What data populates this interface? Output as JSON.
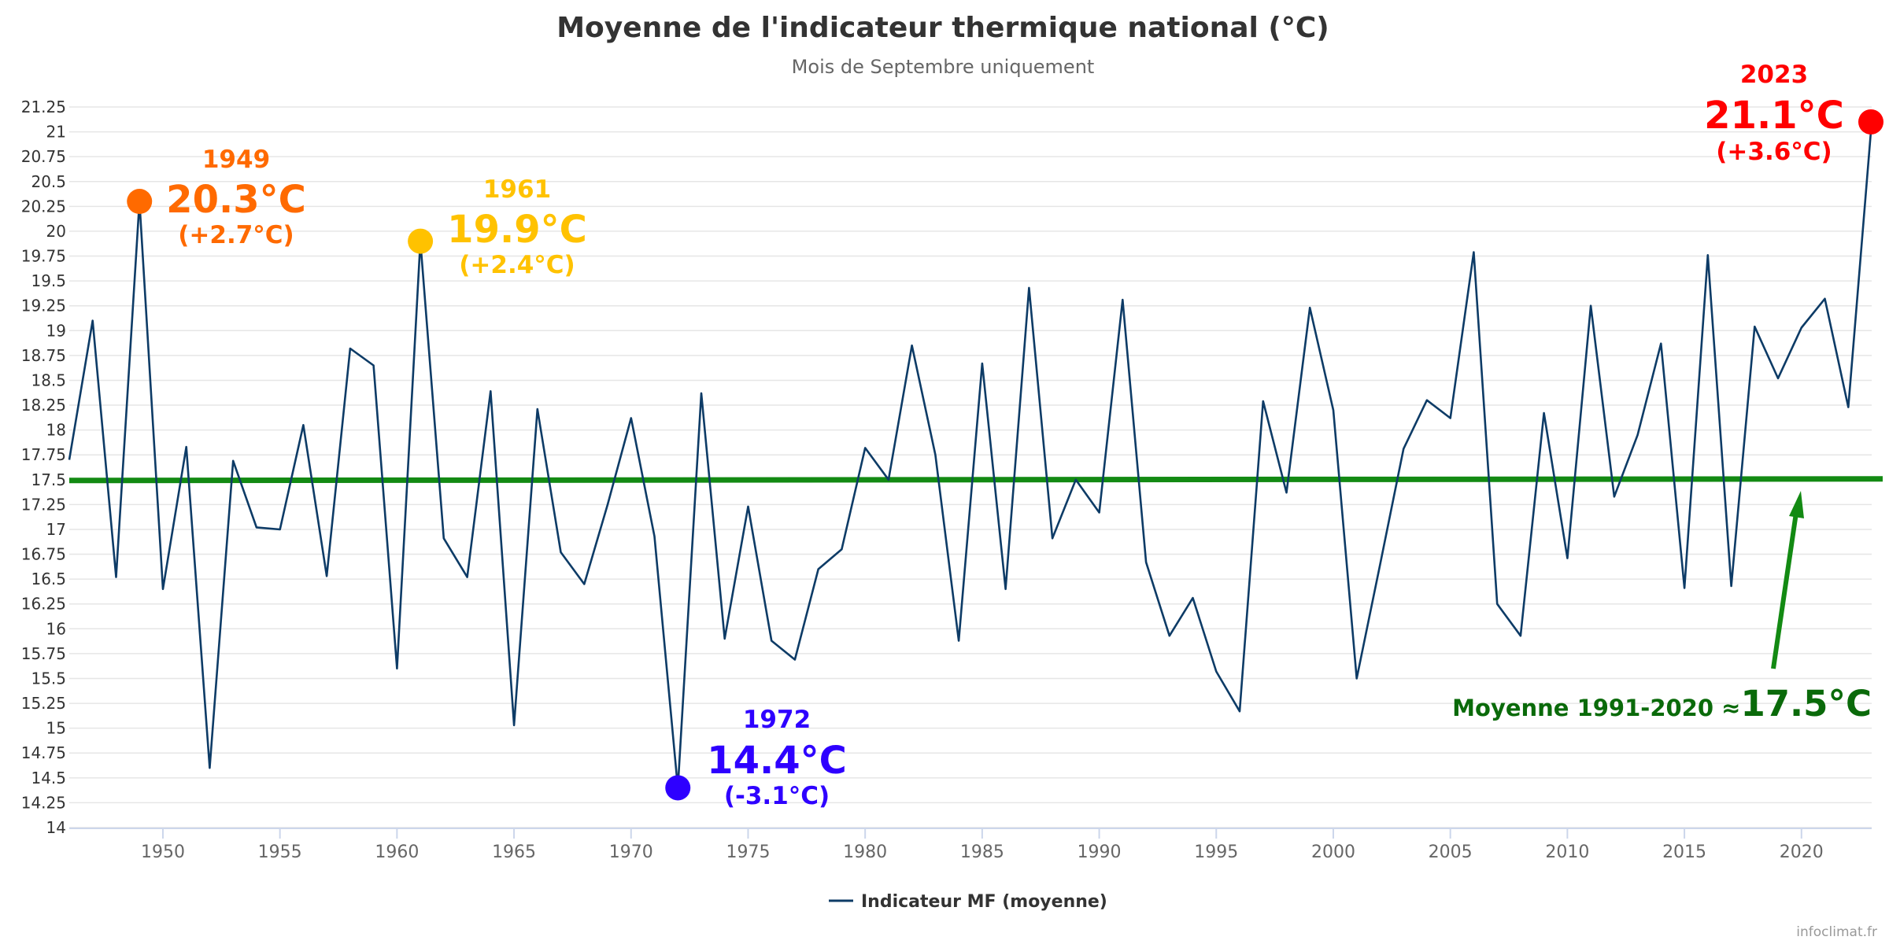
{
  "chart_data": {
    "type": "line",
    "title": "Moyenne de l'indicateur thermique national (°C)",
    "subtitle": "Mois de Septembre uniquement",
    "x_start": 1946,
    "x": [
      1946,
      1947,
      1948,
      1949,
      1950,
      1951,
      1952,
      1953,
      1954,
      1955,
      1956,
      1957,
      1958,
      1959,
      1960,
      1961,
      1962,
      1963,
      1964,
      1965,
      1966,
      1967,
      1968,
      1969,
      1970,
      1971,
      1972,
      1973,
      1974,
      1975,
      1976,
      1977,
      1978,
      1979,
      1980,
      1981,
      1982,
      1983,
      1984,
      1985,
      1986,
      1987,
      1988,
      1989,
      1990,
      1991,
      1992,
      1993,
      1994,
      1995,
      1996,
      1997,
      1998,
      1999,
      2000,
      2001,
      2002,
      2003,
      2004,
      2005,
      2006,
      2007,
      2008,
      2009,
      2010,
      2011,
      2012,
      2013,
      2014,
      2015,
      2016,
      2017,
      2018,
      2019,
      2020,
      2021,
      2022,
      2023
    ],
    "series": [
      {
        "name": "Indicateur MF (moyenne)",
        "color": "#0d3b66",
        "values": [
          17.7,
          19.1,
          16.52,
          20.3,
          16.4,
          17.83,
          14.6,
          17.69,
          17.02,
          17.0,
          18.05,
          16.53,
          18.82,
          18.65,
          15.6,
          19.9,
          16.91,
          16.52,
          18.39,
          15.03,
          18.21,
          16.77,
          16.45,
          17.25,
          18.12,
          16.93,
          14.4,
          18.37,
          15.9,
          17.23,
          15.88,
          15.69,
          16.6,
          16.8,
          17.82,
          17.5,
          18.85,
          17.75,
          15.88,
          18.67,
          16.4,
          19.43,
          16.91,
          17.5,
          17.17,
          19.31,
          16.67,
          15.93,
          16.31,
          15.57,
          15.17,
          18.29,
          17.37,
          19.23,
          18.2,
          15.5,
          16.65,
          17.81,
          18.3,
          18.12,
          19.79,
          16.25,
          15.93,
          18.17,
          16.71,
          19.25,
          17.33,
          17.95,
          18.87,
          16.41,
          19.76,
          16.43,
          19.04,
          18.52,
          19.03,
          19.32,
          18.23,
          21.1
        ]
      }
    ],
    "reference_line": {
      "value": 17.5,
      "color": "#138a13",
      "label_text": "Moyenne 1991-2020 ≈",
      "label_value": "17.5°C"
    },
    "ylim": [
      14,
      21.25
    ],
    "y_ticks": [
      14,
      14.25,
      14.5,
      14.75,
      15,
      15.25,
      15.5,
      15.75,
      16,
      16.25,
      16.5,
      16.75,
      17,
      17.25,
      17.5,
      17.75,
      18,
      18.25,
      18.5,
      18.75,
      19,
      19.25,
      19.5,
      19.75,
      20,
      20.25,
      20.5,
      20.75,
      21,
      21.25
    ],
    "x_ticks": [
      1950,
      1955,
      1960,
      1965,
      1970,
      1975,
      1980,
      1985,
      1990,
      1995,
      2000,
      2005,
      2010,
      2015,
      2020
    ],
    "xlabel": "",
    "ylabel": "",
    "grid": true,
    "legend_position": "bottom-center",
    "highlights": [
      {
        "year": 1949,
        "value": 20.3,
        "year_label": "1949",
        "value_label": "20.3°C",
        "anomaly_label": "(+2.7°C)",
        "color": "#ff6a00"
      },
      {
        "year": 1961,
        "value": 19.9,
        "year_label": "1961",
        "value_label": "19.9°C",
        "anomaly_label": "(+2.4°C)",
        "color": "#ffc200"
      },
      {
        "year": 1972,
        "value": 14.4,
        "year_label": "1972",
        "value_label": "14.4°C",
        "anomaly_label": "(-3.1°C)",
        "color": "#2e00ff"
      },
      {
        "year": 2023,
        "value": 21.1,
        "year_label": "2023",
        "value_label": "21.1°C",
        "anomaly_label": "(+3.6°C)",
        "color": "#ff0000"
      }
    ],
    "credit": "infoclimat.fr"
  }
}
